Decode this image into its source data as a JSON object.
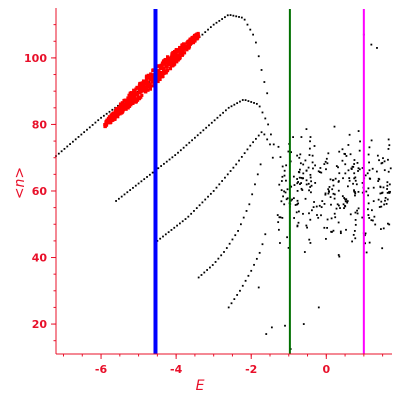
{
  "chart_data": {
    "type": "scatter",
    "title": "",
    "xlabel": "E",
    "ylabel": "<n>",
    "xlim": [
      -7.2,
      1.75
    ],
    "ylim": [
      11,
      115
    ],
    "grid": false,
    "x_ticks": [
      -6,
      -4,
      -2,
      0
    ],
    "x_tick_labels": [
      "-6",
      "-4",
      "-2",
      "0"
    ],
    "y_ticks": [
      20,
      40,
      60,
      80,
      100
    ],
    "y_tick_labels": [
      "20",
      "40",
      "60",
      "80",
      "100"
    ],
    "vertical_lines": [
      {
        "x": -4.55,
        "color": "#0000ff",
        "width": "thick"
      },
      {
        "x": -0.97,
        "color": "#007000",
        "width": "thin"
      },
      {
        "x": 1.0,
        "color": "#ff00ff",
        "width": "thin"
      }
    ],
    "series": [
      {
        "color": "#ff0000",
        "marker": "large",
        "band": {
          "x_start": -5.9,
          "x_end": -3.4,
          "y_start": 80,
          "y_end": 107,
          "spread": 2.5
        }
      },
      {
        "color": "#000000",
        "marker": "small",
        "curves": [
          [
            [
              -7.2,
              70.5
            ],
            [
              -6.0,
              82
            ],
            [
              -5.0,
              90
            ],
            [
              -4.3,
              97
            ],
            [
              -3.6,
              104
            ],
            [
              -3.0,
              110
            ],
            [
              -2.6,
              113
            ],
            [
              -2.2,
              112
            ],
            [
              -1.9,
              106
            ],
            [
              -1.7,
              95
            ],
            [
              -1.5,
              86
            ]
          ],
          [
            [
              -5.6,
              57
            ],
            [
              -4.8,
              64
            ],
            [
              -4.0,
              71
            ],
            [
              -3.2,
              79
            ],
            [
              -2.6,
              85
            ],
            [
              -2.2,
              87.5
            ],
            [
              -1.8,
              86
            ],
            [
              -1.55,
              80
            ],
            [
              -1.35,
              72
            ]
          ],
          [
            [
              -4.5,
              45
            ],
            [
              -3.7,
              52
            ],
            [
              -3.0,
              60
            ],
            [
              -2.4,
              68
            ],
            [
              -2.0,
              74
            ],
            [
              -1.7,
              78
            ],
            [
              -1.5,
              74
            ],
            [
              -1.35,
              66
            ]
          ],
          [
            [
              -3.4,
              34
            ],
            [
              -3.0,
              38
            ],
            [
              -2.7,
              42
            ],
            [
              -2.35,
              48
            ],
            [
              -2.05,
              56
            ],
            [
              -1.85,
              64
            ],
            [
              -1.7,
              70
            ]
          ],
          [
            [
              -2.6,
              25
            ],
            [
              -2.3,
              30
            ],
            [
              -2.0,
              36
            ],
            [
              -1.75,
              42
            ],
            [
              -1.55,
              50
            ]
          ]
        ],
        "cloud": {
          "x_range": [
            -1.3,
            1.75
          ],
          "y_range": [
            37,
            84
          ],
          "count": 320
        },
        "outliers": [
          [
            1.0,
            107
          ],
          [
            1.2,
            104
          ],
          [
            1.35,
            103
          ],
          [
            -1.6,
            17
          ],
          [
            -1.45,
            19
          ],
          [
            -1.1,
            19.5
          ],
          [
            -0.95,
            12.5
          ],
          [
            -0.6,
            20
          ],
          [
            -0.2,
            25
          ],
          [
            -1.8,
            31
          ]
        ]
      }
    ]
  }
}
